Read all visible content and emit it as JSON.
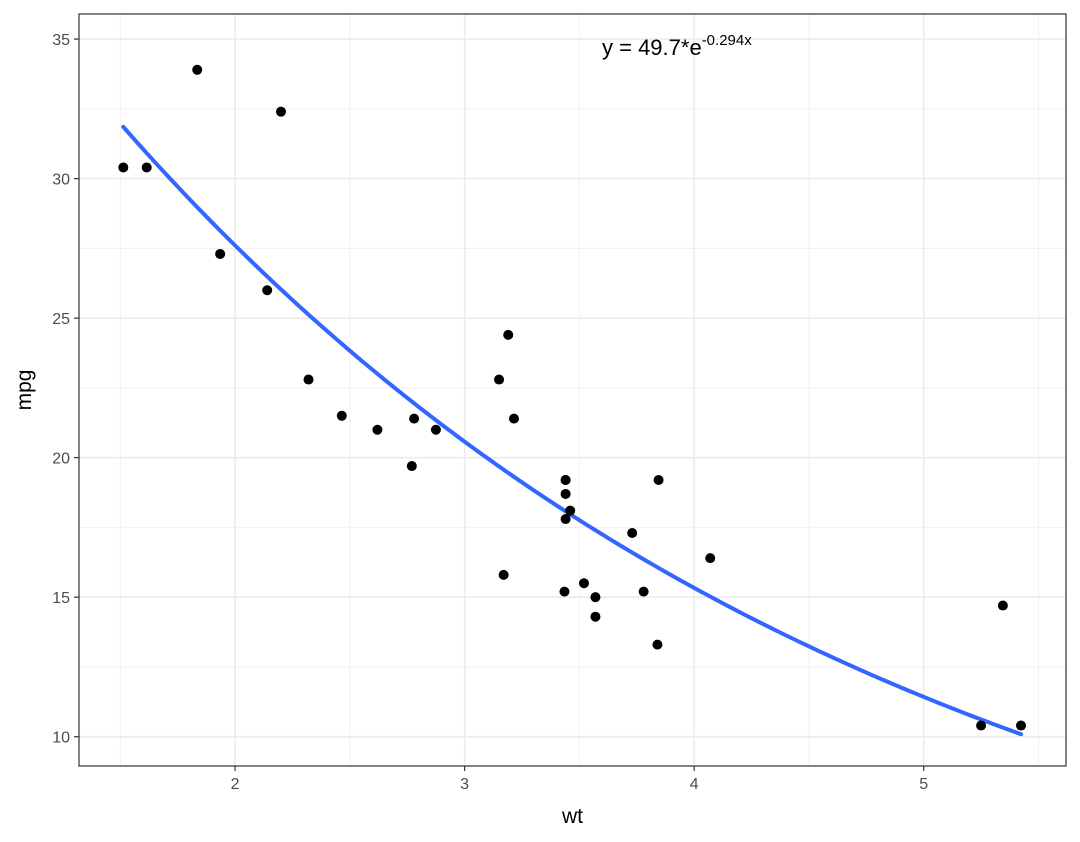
{
  "chart_data": {
    "type": "scatter",
    "title": "",
    "xlabel": "wt",
    "ylabel": "mpg",
    "xlim": [
      1.32,
      5.62
    ],
    "ylim": [
      8.95,
      35.9
    ],
    "xticks": [
      2,
      3,
      4,
      5
    ],
    "yticks": [
      10,
      15,
      20,
      25,
      30,
      35
    ],
    "xtick_labels": [
      "2",
      "3",
      "4",
      "5"
    ],
    "ytick_labels": [
      "10",
      "15",
      "20",
      "25",
      "30",
      "35"
    ],
    "grid": true,
    "legend": "none",
    "points": {
      "color": "#000000",
      "x": [
        1.513,
        1.615,
        1.835,
        1.935,
        2.14,
        2.2,
        2.32,
        2.465,
        2.62,
        2.77,
        2.78,
        2.875,
        3.15,
        3.17,
        3.19,
        3.215,
        3.435,
        3.44,
        3.44,
        3.44,
        3.44,
        3.46,
        3.52,
        3.57,
        3.57,
        3.73,
        3.78,
        3.84,
        3.845,
        4.07,
        5.25,
        5.345,
        5.424
      ],
      "y": [
        30.4,
        30.4,
        33.9,
        27.3,
        26.0,
        32.4,
        22.8,
        21.5,
        21.0,
        19.7,
        21.4,
        21.0,
        22.8,
        15.8,
        24.4,
        21.4,
        15.2,
        19.2,
        18.7,
        17.8,
        19.2,
        18.1,
        15.5,
        15.0,
        14.3,
        17.3,
        15.2,
        13.3,
        19.2,
        16.4,
        10.4,
        14.7,
        10.4
      ]
    },
    "fit": {
      "equation_lhs": "y = 49.7*e",
      "equation_exp": "-0.294x",
      "a": 49.7,
      "b": -0.294,
      "x_range": [
        1.513,
        5.424
      ],
      "color": "#3366ff"
    }
  }
}
